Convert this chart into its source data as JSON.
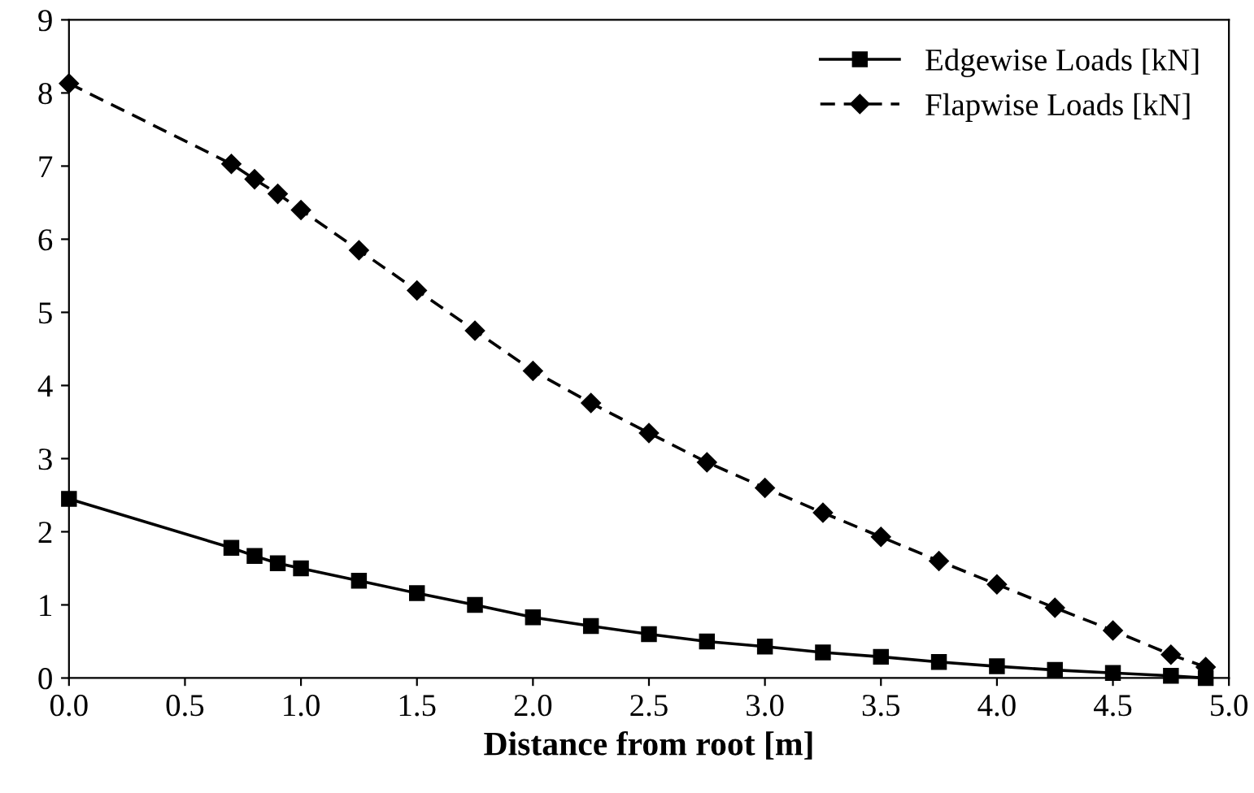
{
  "chart_data": {
    "type": "line",
    "xlabel": "Distance from root [m]",
    "x": [
      0,
      0.7,
      0.8,
      0.9,
      1.0,
      1.25,
      1.5,
      1.75,
      2.0,
      2.25,
      2.5,
      2.75,
      3.0,
      3.25,
      3.5,
      3.75,
      4.0,
      4.25,
      4.5,
      4.75,
      4.9
    ],
    "series": [
      {
        "name": "Edgewise Loads [kN]",
        "color": "#000000",
        "marker": "square",
        "line_style": "solid",
        "values": [
          2.45,
          1.78,
          1.67,
          1.57,
          1.5,
          1.33,
          1.16,
          1.0,
          0.83,
          0.71,
          0.6,
          0.5,
          0.43,
          0.35,
          0.29,
          0.22,
          0.16,
          0.11,
          0.07,
          0.03,
          0.0
        ]
      },
      {
        "name": "Flapwise Loads [kN]",
        "color": "#000000",
        "marker": "diamond",
        "line_style": "dashed",
        "values": [
          8.13,
          7.03,
          6.82,
          6.62,
          6.4,
          5.85,
          5.3,
          4.75,
          4.2,
          3.76,
          3.35,
          2.95,
          2.6,
          2.26,
          1.93,
          1.6,
          1.28,
          0.96,
          0.65,
          0.32,
          0.15
        ]
      }
    ],
    "xlim": [
      0,
      5
    ],
    "xticks": [
      {
        "value": 0,
        "label": "0.0"
      },
      {
        "value": 0.5,
        "label": "0.5"
      },
      {
        "value": 1,
        "label": "1.0"
      },
      {
        "value": 1.5,
        "label": "1.5"
      },
      {
        "value": 2,
        "label": "2.0"
      },
      {
        "value": 2.5,
        "label": "2.5"
      },
      {
        "value": 3,
        "label": "3.0"
      },
      {
        "value": 3.5,
        "label": "3.5"
      },
      {
        "value": 4,
        "label": "4.0"
      },
      {
        "value": 4.5,
        "label": "4.5"
      },
      {
        "value": 5,
        "label": "5.0"
      }
    ],
    "ylim": [
      0,
      9
    ],
    "yticks": [
      0,
      1,
      2,
      3,
      4,
      5,
      6,
      7,
      8,
      9
    ],
    "grid": false,
    "legend": "top right"
  }
}
